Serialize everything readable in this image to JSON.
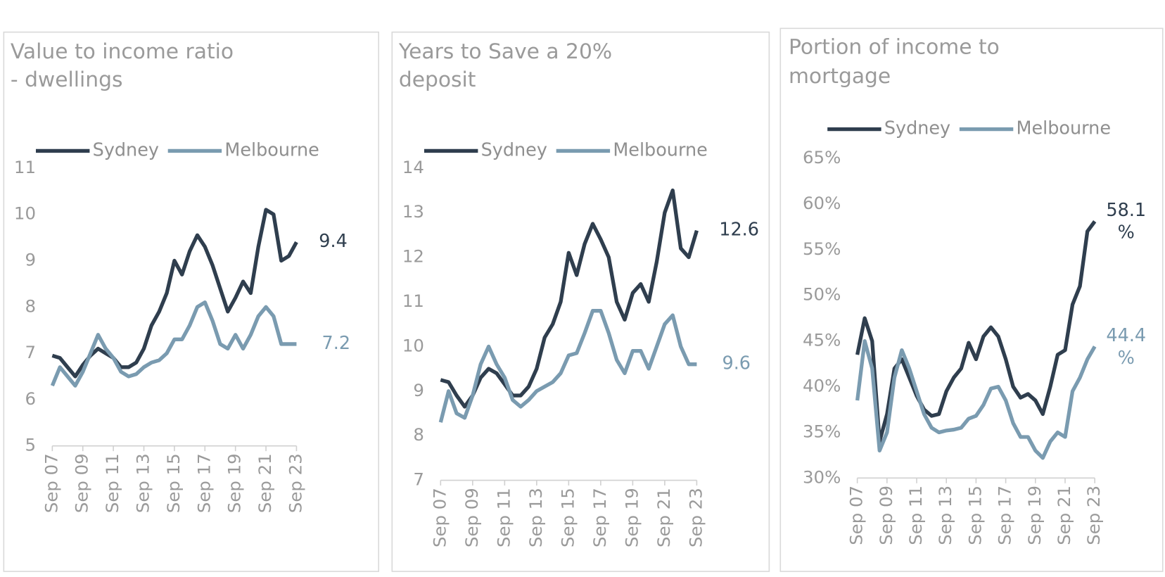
{
  "chart_data": [
    {
      "type": "line",
      "title": [
        "Value to income ratio",
        "- dwellings"
      ],
      "categories": [
        "Sep 07",
        null,
        null,
        null,
        "Sep 09",
        null,
        null,
        null,
        "Sep 11",
        null,
        null,
        null,
        "Sep 13",
        null,
        null,
        null,
        "Sep 15",
        null,
        null,
        null,
        "Sep 17",
        null,
        null,
        null,
        "Sep 19",
        null,
        null,
        null,
        "Sep 21",
        null,
        null,
        null,
        "Sep 23"
      ],
      "ylim": [
        5,
        11
      ],
      "yticks": [
        5,
        6,
        7,
        8,
        9,
        10,
        11
      ],
      "series": [
        {
          "name": "Sydney",
          "color": "#2f3e4e",
          "values": [
            6.95,
            6.9,
            6.7,
            6.5,
            6.75,
            6.95,
            7.1,
            7.0,
            6.9,
            6.7,
            6.7,
            6.8,
            7.1,
            7.6,
            7.9,
            8.3,
            9.0,
            8.7,
            9.2,
            9.55,
            9.3,
            8.9,
            8.4,
            7.9,
            8.2,
            8.55,
            8.3,
            9.3,
            10.1,
            10.0,
            9.0,
            9.1,
            9.4
          ]
        },
        {
          "name": "Melbourne",
          "color": "#7a9bb0",
          "values": [
            6.3,
            6.7,
            6.5,
            6.3,
            6.6,
            7.0,
            7.4,
            7.1,
            6.9,
            6.6,
            6.5,
            6.55,
            6.7,
            6.8,
            6.85,
            7.0,
            7.3,
            7.3,
            7.6,
            8.0,
            8.1,
            7.7,
            7.2,
            7.1,
            7.4,
            7.1,
            7.4,
            7.8,
            8.0,
            7.8,
            7.2,
            7.2,
            7.2
          ]
        }
      ]
    },
    {
      "type": "line",
      "title": [
        "Years to Save a 20%",
        "deposit"
      ],
      "categories": [
        "Sep 07",
        null,
        null,
        null,
        "Sep 09",
        null,
        null,
        null,
        "Sep 11",
        null,
        null,
        null,
        "Sep 13",
        null,
        null,
        null,
        "Sep 15",
        null,
        null,
        null,
        "Sep 17",
        null,
        null,
        null,
        "Sep 19",
        null,
        null,
        null,
        "Sep 21",
        null,
        null,
        null,
        "Sep 23"
      ],
      "ylim": [
        7,
        14
      ],
      "yticks": [
        7,
        8,
        9,
        10,
        11,
        12,
        13,
        14
      ],
      "series": [
        {
          "name": "Sydney",
          "color": "#2f3e4e",
          "values": [
            9.25,
            9.2,
            8.9,
            8.65,
            8.9,
            9.3,
            9.5,
            9.4,
            9.15,
            8.9,
            8.9,
            9.1,
            9.5,
            10.2,
            10.5,
            11.0,
            12.1,
            11.6,
            12.3,
            12.75,
            12.4,
            12.0,
            11.0,
            10.6,
            11.2,
            11.4,
            11.0,
            11.9,
            13.0,
            13.5,
            12.2,
            12.0,
            12.6
          ]
        },
        {
          "name": "Melbourne",
          "color": "#7a9bb0",
          "values": [
            8.3,
            9.0,
            8.5,
            8.4,
            8.9,
            9.6,
            10.0,
            9.6,
            9.3,
            8.8,
            8.65,
            8.8,
            9.0,
            9.1,
            9.2,
            9.4,
            9.8,
            9.85,
            10.3,
            10.8,
            10.8,
            10.3,
            9.7,
            9.4,
            9.9,
            9.9,
            9.5,
            10.0,
            10.5,
            10.7,
            10.0,
            9.6,
            9.6
          ]
        }
      ]
    },
    {
      "type": "line",
      "title": [
        "Portion of income to",
        "mortgage"
      ],
      "categories": [
        "Sep 07",
        null,
        null,
        null,
        "Sep 09",
        null,
        null,
        null,
        "Sep 11",
        null,
        null,
        null,
        "Sep 13",
        null,
        null,
        null,
        "Sep 15",
        null,
        null,
        null,
        "Sep 17",
        null,
        null,
        null,
        "Sep 19",
        null,
        null,
        null,
        "Sep 21",
        null,
        null,
        null,
        "Sep 23"
      ],
      "ylim": [
        30,
        65
      ],
      "yticks": [
        {
          "value": 30,
          "label": "30%"
        },
        {
          "value": 35,
          "label": "35%"
        },
        {
          "value": 40,
          "label": "40%"
        },
        {
          "value": 45,
          "label": "45%"
        },
        {
          "value": 50,
          "label": "50%"
        },
        {
          "value": 55,
          "label": "55%"
        },
        {
          "value": 60,
          "label": "60%"
        },
        {
          "value": 65,
          "label": "65%"
        }
      ],
      "series": [
        {
          "name": "Sydney",
          "color": "#2f3e4e",
          "values": [
            43.5,
            47.5,
            45,
            34,
            37,
            42,
            43,
            41,
            39,
            37.5,
            36.8,
            37,
            39.5,
            41,
            42,
            44.8,
            43,
            45.5,
            46.5,
            45.5,
            43,
            40,
            38.8,
            39.2,
            38.5,
            37,
            40,
            43.5,
            44,
            49,
            51,
            57,
            58.1
          ],
          "value_labels": [
            null,
            null,
            null,
            null,
            null,
            null,
            null,
            null,
            null,
            null,
            null,
            null,
            null,
            null,
            null,
            null,
            null,
            null,
            null,
            null,
            null,
            null,
            null,
            null,
            null,
            null,
            null,
            null,
            null,
            null,
            null,
            null,
            "58.1 %"
          ]
        },
        {
          "name": "Melbourne",
          "color": "#7a9bb0",
          "values": [
            38.5,
            45,
            42,
            33,
            35,
            41,
            44,
            42,
            39.5,
            37,
            35.5,
            35,
            35.2,
            35.3,
            35.5,
            36.5,
            36.8,
            38,
            39.8,
            40,
            38.5,
            36,
            34.5,
            34.5,
            33,
            32.2,
            34,
            35,
            34.5,
            39.5,
            41,
            43,
            44.4
          ],
          "value_labels": [
            null,
            null,
            null,
            null,
            null,
            null,
            null,
            null,
            null,
            null,
            null,
            null,
            null,
            null,
            null,
            null,
            null,
            null,
            null,
            null,
            null,
            null,
            null,
            null,
            null,
            null,
            null,
            null,
            null,
            null,
            null,
            null,
            "44.4 %"
          ]
        }
      ]
    }
  ]
}
